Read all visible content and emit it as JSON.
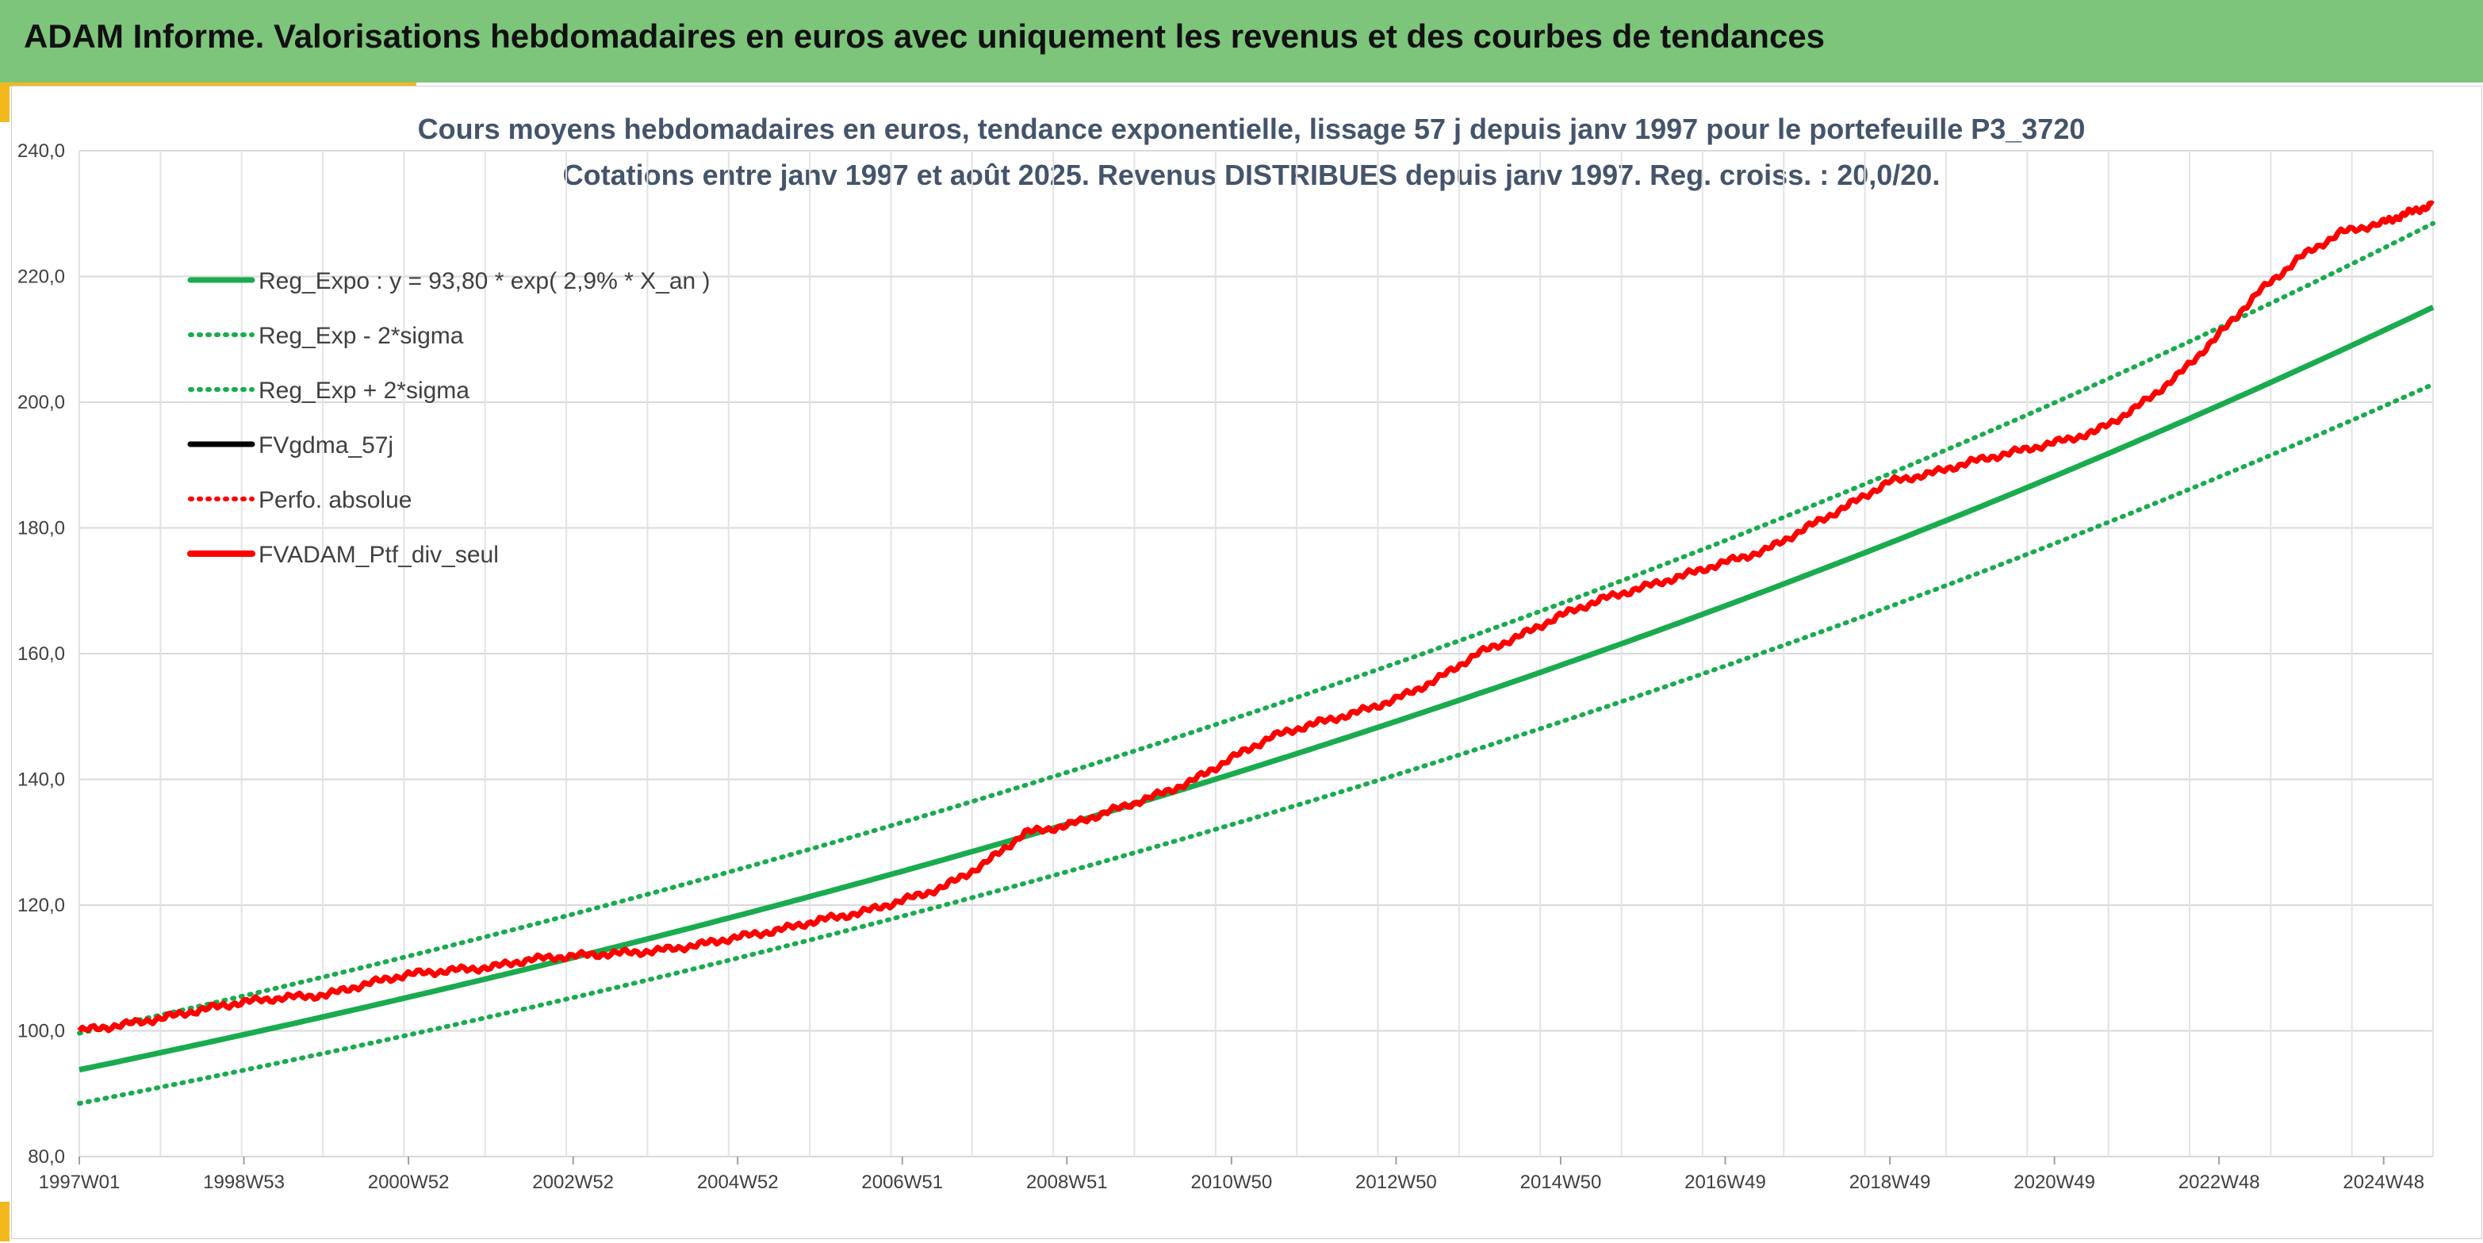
{
  "header": {
    "title": "ADAM Informe. Valorisations hebdomadaires en euros avec uniquement les revenus et des courbes de tendances"
  },
  "colors": {
    "header_bg": "#7dc57b",
    "accent_gold": "#f2b91f",
    "trend_green": "#1aab4f",
    "portfolio_red": "#ff0000",
    "gdma_black": "#000000"
  },
  "chart_data": {
    "type": "line",
    "title": "Cours moyens hebdomadaires en euros, tendance exponentielle, lissage 57 j depuis janv 1997 pour le portefeuille P3_3720",
    "subtitle": "Cotations entre janv 1997 et août 2025. Revenus DISTRIBUES depuis janv 1997. Reg. croiss. : 20,0/20.",
    "xlabel": "",
    "ylabel": "",
    "ylim": [
      80,
      240
    ],
    "yticks": [
      "80,0",
      "100,0",
      "120,0",
      "140,0",
      "160,0",
      "180,0",
      "200,0",
      "220,0",
      "240,0"
    ],
    "xlim": [
      1997.0,
      2025.62
    ],
    "xtick_labels": [
      "1997W01",
      "1998W53",
      "2000W52",
      "2002W52",
      "2004W52",
      "2006W51",
      "2008W51",
      "2010W50",
      "2012W50",
      "2014W50",
      "2016W49",
      "2018W49",
      "2020W49",
      "2022W48",
      "2024W48"
    ],
    "grid": true,
    "legend_position": "top-left",
    "regression": {
      "a": 93.8,
      "rate": 0.029,
      "start_year": 1997.0,
      "band_factor_low": 0.943,
      "band_factor_high": 1.062
    },
    "series": [
      {
        "name": "Reg_Expo : y = 93,80 * exp( 2,9% *  X_an )",
        "style": "solid",
        "color": "#1aab4f"
      },
      {
        "name": "Reg_Exp - 2*sigma",
        "style": "dotted",
        "color": "#1aab4f"
      },
      {
        "name": "Reg_Exp + 2*sigma",
        "style": "dotted",
        "color": "#1aab4f"
      },
      {
        "name": "FVgdma_57j",
        "style": "solid",
        "color": "#000000"
      },
      {
        "name": "Perfo. absolue",
        "style": "dotted",
        "color": "#ff0000"
      },
      {
        "name": "FVADAM_Ptf_div_seul",
        "style": "solid",
        "color": "#ff0000"
      }
    ],
    "portfolio": {
      "x": [
        1997.0,
        1997.5,
        1998.0,
        1998.5,
        1999.0,
        1999.5,
        2000.0,
        2000.5,
        2001.0,
        2001.5,
        2002.0,
        2002.5,
        2003.0,
        2003.5,
        2004.0,
        2004.5,
        2005.0,
        2005.5,
        2006.0,
        2006.5,
        2007.0,
        2007.5,
        2008.0,
        2008.5,
        2009.0,
        2009.5,
        2010.0,
        2010.5,
        2011.0,
        2011.5,
        2012.0,
        2012.5,
        2013.0,
        2013.5,
        2014.0,
        2014.5,
        2015.0,
        2015.5,
        2016.0,
        2016.5,
        2017.0,
        2017.5,
        2018.0,
        2018.5,
        2019.0,
        2019.5,
        2020.0,
        2020.5,
        2021.0,
        2021.5,
        2022.0,
        2022.5,
        2023.0,
        2023.5,
        2024.0,
        2024.5,
        2025.0,
        2025.3,
        2025.62
      ],
      "y": [
        100.0,
        100.9,
        102.0,
        103.4,
        104.6,
        105.3,
        105.7,
        107.5,
        109.0,
        109.6,
        110.1,
        111.4,
        111.9,
        112.3,
        112.7,
        113.6,
        114.9,
        116.0,
        117.6,
        118.8,
        120.7,
        122.8,
        126.5,
        131.5,
        132.6,
        134.8,
        137.0,
        139.5,
        143.3,
        146.8,
        148.8,
        150.5,
        152.7,
        155.8,
        160.0,
        162.7,
        166.0,
        168.6,
        170.5,
        172.4,
        174.5,
        176.4,
        180.0,
        183.5,
        187.3,
        188.6,
        190.5,
        192.0,
        193.5,
        195.2,
        199.0,
        204.0,
        210.5,
        217.5,
        223.0,
        227.0,
        228.5,
        230.0,
        231.5
      ]
    }
  }
}
